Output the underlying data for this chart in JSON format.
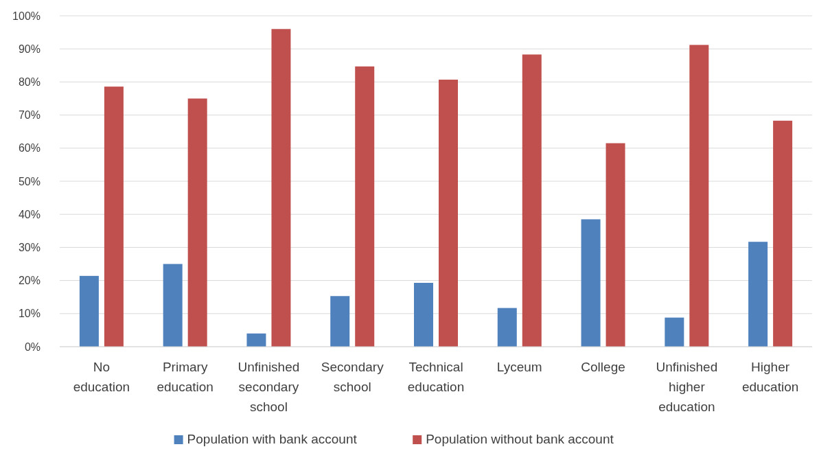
{
  "chart_data": {
    "type": "bar",
    "categories": [
      "No education",
      "Primary education",
      "Unfinished secondary school",
      "Secondary school",
      "Technical education",
      "Lyceum",
      "College",
      "Unfinished higher education",
      "Higher education"
    ],
    "series": [
      {
        "name": "Population with bank account",
        "color": "#4f81bd",
        "values": [
          21.4,
          25,
          4,
          15.3,
          19.3,
          11.7,
          38.5,
          8.8,
          31.7
        ]
      },
      {
        "name": "Population without bank account",
        "color": "#c0504d",
        "values": [
          78.6,
          75,
          96,
          84.7,
          80.7,
          88.3,
          61.5,
          91.2,
          68.3
        ]
      }
    ],
    "ylim": [
      0,
      100
    ],
    "yticks": [
      {
        "value": 0,
        "label": "0%"
      },
      {
        "value": 10,
        "label": "10%"
      },
      {
        "value": 20,
        "label": "20%"
      },
      {
        "value": 30,
        "label": "30%"
      },
      {
        "value": 40,
        "label": "40%"
      },
      {
        "value": 50,
        "label": "50%"
      },
      {
        "value": 60,
        "label": "60%"
      },
      {
        "value": 70,
        "label": "70%"
      },
      {
        "value": 80,
        "label": "80%"
      },
      {
        "value": 90,
        "label": "90%"
      },
      {
        "value": 100,
        "label": "100%"
      }
    ],
    "grid": "y",
    "legend": "bottom"
  }
}
